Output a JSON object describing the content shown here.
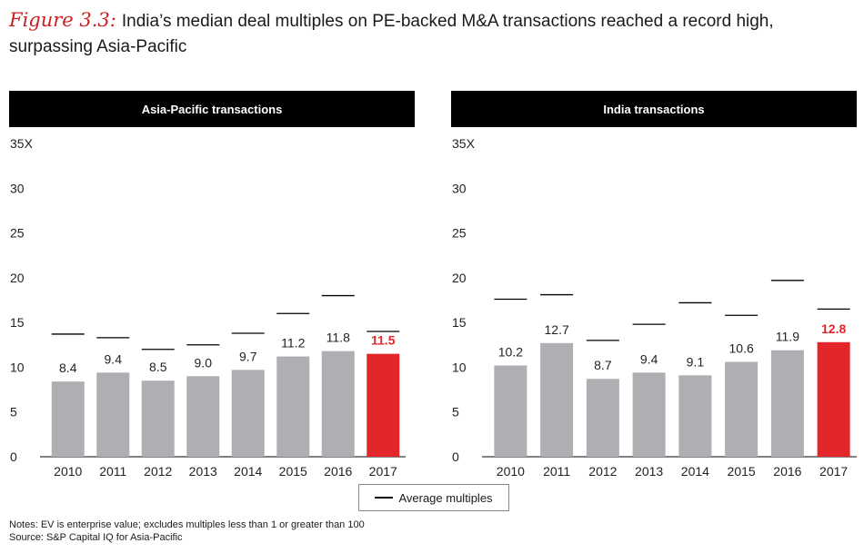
{
  "header": {
    "figure_label": "Figure 3.3:",
    "title": "India’s median deal multiples on PE-backed M&A transactions reached a record high, surpassing Asia-Pacific"
  },
  "chart_data": [
    {
      "type": "bar",
      "title": "Asia-Pacific transactions",
      "categories": [
        "2010",
        "2011",
        "2012",
        "2013",
        "2014",
        "2015",
        "2016",
        "2017"
      ],
      "series": [
        {
          "values": [
            8.4,
            9.4,
            8.5,
            9.0,
            9.7,
            11.2,
            11.8,
            11.5
          ]
        },
        {
          "name": "Average multiples",
          "values": [
            13.7,
            13.3,
            12.0,
            12.5,
            13.8,
            16.0,
            18.0,
            14.0
          ]
        }
      ],
      "value_labels": [
        "8.4",
        "9.4",
        "8.5",
        "9.0",
        "9.7",
        "11.2",
        "11.8",
        "11.5"
      ],
      "ylim": [
        0,
        35
      ],
      "yticks": [
        "0",
        "5",
        "10",
        "15",
        "20",
        "25",
        "30",
        "35X"
      ],
      "colors": {
        "bar": "#aeafb2",
        "highlight": "#e3262a",
        "average": "#000000"
      },
      "highlight_index": 7,
      "grid": false
    },
    {
      "type": "bar",
      "title": "India transactions",
      "categories": [
        "2010",
        "2011",
        "2012",
        "2013",
        "2014",
        "2015",
        "2016",
        "2017"
      ],
      "series": [
        {
          "values": [
            10.2,
            12.7,
            8.7,
            9.4,
            9.1,
            10.6,
            11.9,
            12.8
          ]
        },
        {
          "name": "Average multiples",
          "values": [
            17.6,
            18.1,
            13.0,
            14.8,
            17.2,
            15.8,
            19.7,
            16.5
          ]
        }
      ],
      "value_labels": [
        "10.2",
        "12.7",
        "8.7",
        "9.4",
        "9.1",
        "10.6",
        "11.9",
        "12.8"
      ],
      "ylim": [
        0,
        35
      ],
      "yticks": [
        "0",
        "5",
        "10",
        "15",
        "20",
        "25",
        "30",
        "35X"
      ],
      "colors": {
        "bar": "#aeafb2",
        "highlight": "#e3262a",
        "average": "#000000"
      },
      "highlight_index": 7,
      "grid": false
    }
  ],
  "legend": {
    "label": "Average multiples"
  },
  "notes": {
    "line1": "Notes: EV is enterprise value; excludes multiples less than 1 or greater than 100",
    "line2": "Source: S&P Capital IQ for Asia-Pacific"
  }
}
